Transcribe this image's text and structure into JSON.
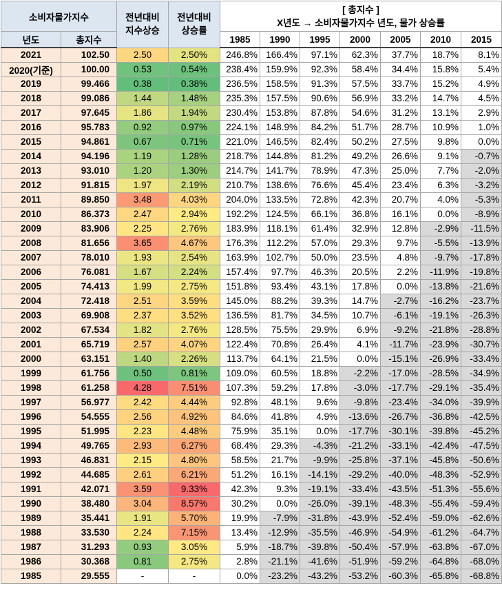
{
  "header": {
    "group": "소비자물가지수",
    "year": "년도",
    "index": "총지수",
    "diff": [
      "전년대비",
      "지수상승"
    ],
    "rate": [
      "전년대비",
      "상승률"
    ],
    "base_title": "[ 총지수 ]",
    "base_subtitle": "X년도 → 소비자물가지수 년도, 물가 상승률",
    "base_years": [
      "1985",
      "1990",
      "1995",
      "2000",
      "2005",
      "2010",
      "2015"
    ]
  },
  "rows": [
    [
      "2021",
      "102.50",
      "2.50",
      "2.50%",
      "246.8%",
      "166.4%",
      "97.1%",
      "62.3%",
      "37.7%",
      "18.7%",
      "8.1%"
    ],
    [
      "2020(기준)",
      "100.00",
      "0.53",
      "0.54%",
      "238.4%",
      "159.9%",
      "92.3%",
      "58.4%",
      "34.4%",
      "15.8%",
      "5.4%"
    ],
    [
      "2019",
      "99.466",
      "0.38",
      "0.38%",
      "236.5%",
      "158.5%",
      "91.3%",
      "57.5%",
      "33.7%",
      "15.2%",
      "4.9%"
    ],
    [
      "2018",
      "99.086",
      "1.44",
      "1.48%",
      "235.3%",
      "157.5%",
      "90.6%",
      "56.9%",
      "33.2%",
      "14.7%",
      "4.5%"
    ],
    [
      "2017",
      "97.645",
      "1.86",
      "1.94%",
      "230.4%",
      "153.8%",
      "87.8%",
      "54.6%",
      "31.2%",
      "13.1%",
      "2.9%"
    ],
    [
      "2016",
      "95.783",
      "0.92",
      "0.97%",
      "224.1%",
      "148.9%",
      "84.2%",
      "51.7%",
      "28.7%",
      "10.9%",
      "1.0%"
    ],
    [
      "2015",
      "94.861",
      "0.67",
      "0.71%",
      "221.0%",
      "146.5%",
      "82.4%",
      "50.2%",
      "27.5%",
      "9.8%",
      "0.0%"
    ],
    [
      "2014",
      "94.196",
      "1.19",
      "1.28%",
      "218.7%",
      "144.8%",
      "81.2%",
      "49.2%",
      "26.6%",
      "9.1%",
      "-0.7%"
    ],
    [
      "2013",
      "93.010",
      "1.20",
      "1.30%",
      "214.7%",
      "141.7%",
      "78.9%",
      "47.3%",
      "25.0%",
      "7.7%",
      "-2.0%"
    ],
    [
      "2012",
      "91.815",
      "1.97",
      "2.19%",
      "210.7%",
      "138.6%",
      "76.6%",
      "45.4%",
      "23.4%",
      "6.3%",
      "-3.2%"
    ],
    [
      "2011",
      "89.850",
      "3.48",
      "4.03%",
      "204.0%",
      "133.5%",
      "72.8%",
      "42.3%",
      "20.7%",
      "4.0%",
      "-5.3%"
    ],
    [
      "2010",
      "86.373",
      "2.47",
      "2.94%",
      "192.2%",
      "124.5%",
      "66.1%",
      "36.8%",
      "16.1%",
      "0.0%",
      "-8.9%"
    ],
    [
      "2009",
      "83.906",
      "2.25",
      "2.76%",
      "183.9%",
      "118.1%",
      "61.4%",
      "32.9%",
      "12.8%",
      "-2.9%",
      "-11.5%"
    ],
    [
      "2008",
      "81.656",
      "3.65",
      "4.67%",
      "176.3%",
      "112.2%",
      "57.0%",
      "29.3%",
      "9.7%",
      "-5.5%",
      "-13.9%"
    ],
    [
      "2007",
      "78.010",
      "1.93",
      "2.54%",
      "163.9%",
      "102.7%",
      "50.0%",
      "23.5%",
      "4.8%",
      "-9.7%",
      "-17.8%"
    ],
    [
      "2006",
      "76.081",
      "1.67",
      "2.24%",
      "157.4%",
      "97.7%",
      "46.3%",
      "20.5%",
      "2.2%",
      "-11.9%",
      "-19.8%"
    ],
    [
      "2005",
      "74.413",
      "1.99",
      "2.75%",
      "151.8%",
      "93.4%",
      "43.1%",
      "17.8%",
      "0.0%",
      "-13.8%",
      "-21.6%"
    ],
    [
      "2004",
      "72.418",
      "2.51",
      "3.59%",
      "145.0%",
      "88.2%",
      "39.3%",
      "14.7%",
      "-2.7%",
      "-16.2%",
      "-23.7%"
    ],
    [
      "2003",
      "69.908",
      "2.37",
      "3.52%",
      "136.5%",
      "81.7%",
      "34.5%",
      "10.7%",
      "-6.1%",
      "-19.1%",
      "-26.3%"
    ],
    [
      "2002",
      "67.534",
      "1.82",
      "2.76%",
      "128.5%",
      "75.5%",
      "29.9%",
      "6.9%",
      "-9.2%",
      "-21.8%",
      "-28.8%"
    ],
    [
      "2001",
      "65.719",
      "2.57",
      "4.07%",
      "122.4%",
      "70.8%",
      "26.4%",
      "4.1%",
      "-11.7%",
      "-23.9%",
      "-30.7%"
    ],
    [
      "2000",
      "63.151",
      "1.40",
      "2.26%",
      "113.7%",
      "64.1%",
      "21.5%",
      "0.0%",
      "-15.1%",
      "-26.9%",
      "-33.4%"
    ],
    [
      "1999",
      "61.756",
      "0.50",
      "0.81%",
      "109.0%",
      "60.5%",
      "18.8%",
      "-2.2%",
      "-17.0%",
      "-28.5%",
      "-34.9%"
    ],
    [
      "1998",
      "61.258",
      "4.28",
      "7.51%",
      "107.3%",
      "59.2%",
      "17.8%",
      "-3.0%",
      "-17.7%",
      "-29.1%",
      "-35.4%"
    ],
    [
      "1997",
      "56.977",
      "2.42",
      "4.44%",
      "92.8%",
      "48.1%",
      "9.6%",
      "-9.8%",
      "-23.4%",
      "-34.0%",
      "-39.9%"
    ],
    [
      "1996",
      "54.555",
      "2.56",
      "4.92%",
      "84.6%",
      "41.8%",
      "4.9%",
      "-13.6%",
      "-26.7%",
      "-36.8%",
      "-42.5%"
    ],
    [
      "1995",
      "51.995",
      "2.23",
      "4.48%",
      "75.9%",
      "35.1%",
      "0.0%",
      "-17.7%",
      "-30.1%",
      "-39.8%",
      "-45.2%"
    ],
    [
      "1994",
      "49.765",
      "2.93",
      "6.27%",
      "68.4%",
      "29.3%",
      "-4.3%",
      "-21.2%",
      "-33.1%",
      "-42.4%",
      "-47.5%"
    ],
    [
      "1993",
      "46.831",
      "2.15",
      "4.80%",
      "58.5%",
      "21.7%",
      "-9.9%",
      "-25.8%",
      "-37.1%",
      "-45.8%",
      "-50.6%"
    ],
    [
      "1992",
      "44.685",
      "2.61",
      "6.21%",
      "51.2%",
      "16.1%",
      "-14.1%",
      "-29.2%",
      "-40.0%",
      "-48.3%",
      "-52.9%"
    ],
    [
      "1991",
      "42.071",
      "3.59",
      "9.33%",
      "42.3%",
      "9.3%",
      "-19.1%",
      "-33.4%",
      "-43.5%",
      "-51.3%",
      "-55.6%"
    ],
    [
      "1990",
      "38.480",
      "3.04",
      "8.57%",
      "30.2%",
      "0.0%",
      "-26.0%",
      "-39.1%",
      "-48.3%",
      "-55.4%",
      "-59.4%"
    ],
    [
      "1989",
      "35.441",
      "1.91",
      "5.70%",
      "19.9%",
      "-7.9%",
      "-31.8%",
      "-43.9%",
      "-52.4%",
      "-59.0%",
      "-62.6%"
    ],
    [
      "1988",
      "33.530",
      "2.24",
      "7.15%",
      "13.4%",
      "-12.9%",
      "-35.5%",
      "-46.9%",
      "-54.9%",
      "-61.2%",
      "-64.7%"
    ],
    [
      "1987",
      "31.293",
      "0.93",
      "3.05%",
      "5.9%",
      "-18.7%",
      "-39.8%",
      "-50.4%",
      "-57.9%",
      "-63.8%",
      "-67.0%"
    ],
    [
      "1986",
      "30.368",
      "0.81",
      "2.75%",
      "2.8%",
      "-21.1%",
      "-41.6%",
      "-51.9%",
      "-59.2%",
      "-64.8%",
      "-68.0%"
    ],
    [
      "1985",
      "29.555",
      "-",
      "-",
      "0.0%",
      "-23.2%",
      "-43.2%",
      "-53.2%",
      "-60.3%",
      "-65.8%",
      "-68.8%"
    ]
  ]
}
